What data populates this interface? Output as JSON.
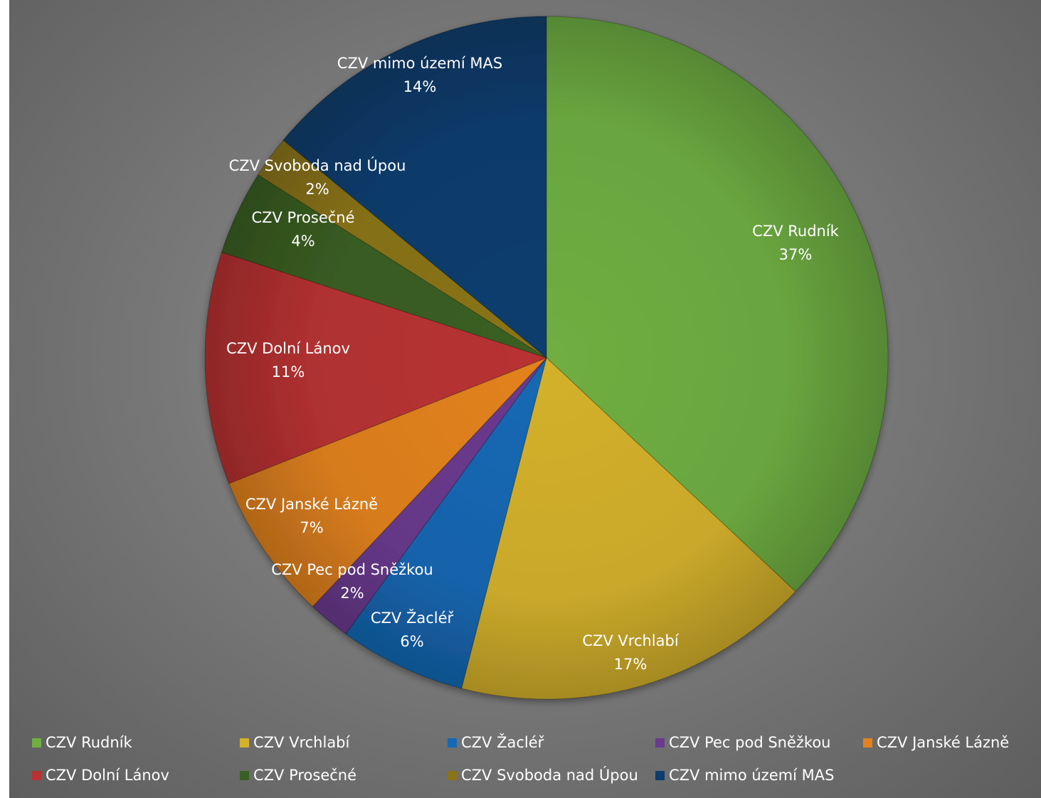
{
  "chart_data": {
    "type": "pie",
    "start_angle": "12 o'clock",
    "direction": "clockwise",
    "legend_position": "bottom",
    "slices": [
      {
        "name": "CZV Rudník",
        "value": 37,
        "label": "37%",
        "color": "#6fae42"
      },
      {
        "name": "CZV Vrchlabí",
        "value": 17,
        "label": "17%",
        "color": "#d4b12c"
      },
      {
        "name": "CZV Žacléř",
        "value": 6,
        "label": "6%",
        "color": "#1568b4"
      },
      {
        "name": "CZV Pec pod Sněžkou",
        "value": 2,
        "label": "2%",
        "color": "#6a3a8e"
      },
      {
        "name": "CZV Janské Lázně",
        "value": 7,
        "label": "7%",
        "color": "#e2821f"
      },
      {
        "name": "CZV Dolní Lánov",
        "value": 11,
        "label": "11%",
        "color": "#b83232"
      },
      {
        "name": "CZV Prosečné",
        "value": 4,
        "label": "4%",
        "color": "#3a5f22"
      },
      {
        "name": "CZV Svoboda nad Úpou",
        "value": 2,
        "label": "2%",
        "color": "#8a7418"
      },
      {
        "name": "CZV mimo území MAS",
        "value": 14,
        "label": "14%",
        "color": "#0b3d6e"
      }
    ]
  }
}
